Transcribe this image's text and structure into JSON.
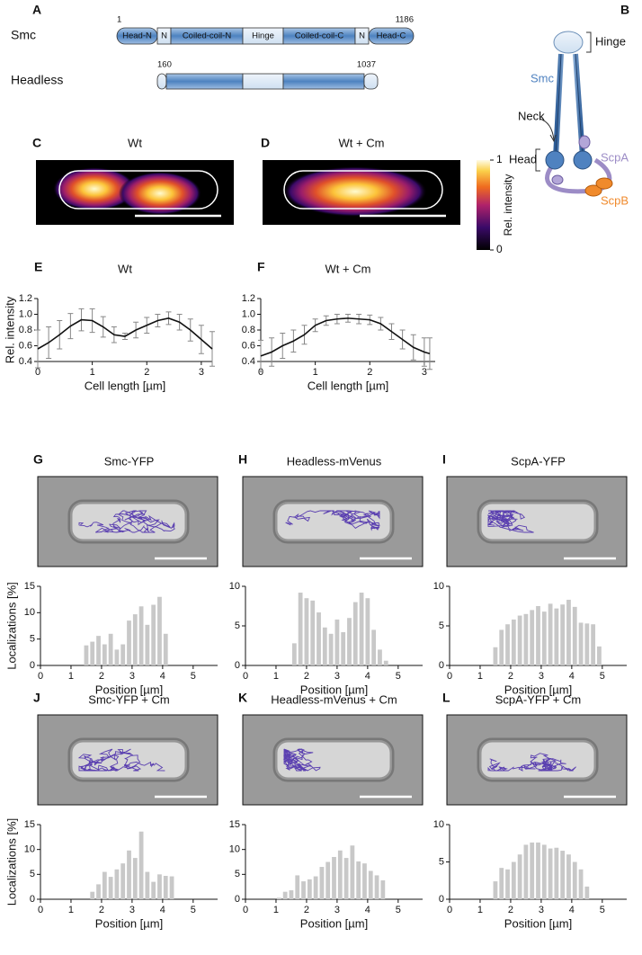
{
  "panel_a": {
    "panel": "A",
    "smc": {
      "name": "Smc",
      "start": "1",
      "end": "1186",
      "domains": [
        "Head-N",
        "N",
        "Coiled-coil-N",
        "Hinge",
        "Coiled-coil-C",
        "N",
        "Head-C"
      ]
    },
    "headless": {
      "name": "Headless",
      "start": "160",
      "end": "1037"
    }
  },
  "panel_b": {
    "panel": "B",
    "hinge": "Hinge",
    "smc": "Smc",
    "neck": "Neck",
    "head": "Head",
    "scpa": "ScpA",
    "scpb": "ScpB"
  },
  "panel_c": {
    "panel": "C",
    "title": "Wt"
  },
  "panel_d": {
    "panel": "D",
    "title": "Wt + Cm"
  },
  "colorbar": {
    "label": "Rel. intensity",
    "ticks": [
      0,
      1
    ]
  },
  "chart_data": [
    {
      "type": "errorline",
      "panel": "E",
      "title": "Wt",
      "x_label": "Cell length [µm]",
      "y_label": "Rel. intensity",
      "color": "#111111",
      "x": [
        0,
        0.2,
        0.4,
        0.6,
        0.8,
        1,
        1.2,
        1.4,
        1.6,
        1.8,
        2,
        2.2,
        2.4,
        2.6,
        2.8,
        3,
        3.2
      ],
      "values": [
        0.56,
        0.64,
        0.74,
        0.85,
        0.93,
        0.92,
        0.84,
        0.74,
        0.72,
        0.8,
        0.86,
        0.92,
        0.95,
        0.9,
        0.8,
        0.68,
        0.56
      ],
      "errors": [
        0.24,
        0.2,
        0.18,
        0.16,
        0.14,
        0.15,
        0.13,
        0.1,
        0.04,
        0.1,
        0.1,
        0.08,
        0.08,
        0.1,
        0.14,
        0.18,
        0.22
      ],
      "xlim": [
        0,
        3.2
      ],
      "ylim": [
        0.4,
        1.2
      ],
      "xticks": [
        0,
        1,
        2,
        3
      ],
      "yticks": [
        0.4,
        0.6,
        0.8,
        {
          "value": 1,
          "label": "1.0"
        },
        1.2
      ]
    },
    {
      "type": "errorline",
      "panel": "F",
      "title": "Wt + Cm",
      "x_label": "Cell length [µm]",
      "color": "#111111",
      "x": [
        0,
        0.2,
        0.4,
        0.6,
        0.8,
        1,
        1.2,
        1.4,
        1.6,
        1.8,
        2,
        2.2,
        2.4,
        2.6,
        2.8,
        3,
        3.1
      ],
      "values": [
        0.47,
        0.52,
        0.6,
        0.66,
        0.74,
        0.86,
        0.92,
        0.94,
        0.95,
        0.94,
        0.93,
        0.88,
        0.78,
        0.68,
        0.58,
        0.52,
        0.5
      ],
      "errors": [
        0.2,
        0.18,
        0.16,
        0.14,
        0.12,
        0.08,
        0.06,
        0.06,
        0.05,
        0.06,
        0.06,
        0.08,
        0.1,
        0.12,
        0.16,
        0.18,
        0.2
      ],
      "xlim": [
        0,
        3.2
      ],
      "ylim": [
        0.4,
        1.2
      ],
      "xticks": [
        0,
        1,
        2,
        3
      ],
      "yticks": [
        0.4,
        0.6,
        0.8,
        {
          "value": 1,
          "label": "1.0"
        },
        1.2
      ]
    },
    {
      "type": "histogram",
      "panel": "G",
      "title": "Smc-YFP",
      "x_label": "Position [µm]",
      "y_label": "Localizations [%]",
      "color": "#c8c8c8",
      "bins": [
        1.4,
        1.6,
        1.8,
        2,
        2.2,
        2.4,
        2.6,
        2.8,
        3,
        3.2,
        3.4,
        3.6,
        3.8,
        4,
        4.2
      ],
      "values": [
        3.8,
        4.5,
        5.6,
        4,
        6,
        3,
        4,
        8.5,
        9.7,
        11.2,
        7.7,
        11.5,
        13,
        6
      ],
      "xlim": [
        0,
        5.8
      ],
      "ylim": [
        0,
        15
      ],
      "xticks": [
        0,
        1,
        2,
        3,
        4,
        5
      ],
      "yticks": [
        0,
        5,
        10,
        15
      ]
    },
    {
      "type": "histogram",
      "panel": "H",
      "title": "Headless-mVenus",
      "x_label": "Position [µm]",
      "color": "#c8c8c8",
      "bins": [
        1.5,
        1.7,
        1.9,
        2.1,
        2.3,
        2.5,
        2.7,
        2.9,
        3.1,
        3.3,
        3.5,
        3.7,
        3.9,
        4.1,
        4.3,
        4.5,
        4.7
      ],
      "values": [
        2.8,
        9.2,
        8.5,
        8.2,
        6.7,
        4.8,
        4,
        5.8,
        4.2,
        6,
        8,
        9.2,
        8.5,
        4.5,
        2,
        0.6
      ],
      "xlim": [
        0,
        5.8
      ],
      "ylim": [
        0,
        10
      ],
      "xticks": [
        0,
        1,
        2,
        3,
        4,
        5
      ],
      "yticks": [
        0,
        5,
        10
      ]
    },
    {
      "type": "histogram",
      "panel": "I",
      "title": "ScpA-YFP",
      "x_label": "Position [µm]",
      "color": "#c8c8c8",
      "bins": [
        1.4,
        1.6,
        1.8,
        2,
        2.2,
        2.4,
        2.6,
        2.8,
        3,
        3.2,
        3.4,
        3.6,
        3.8,
        4,
        4.2,
        4.4,
        4.6,
        4.8,
        5
      ],
      "values": [
        2.3,
        4.5,
        5.2,
        5.8,
        6.3,
        6.5,
        7,
        7.5,
        6.8,
        7.8,
        7.2,
        7.7,
        8.3,
        7.4,
        5.4,
        5.3,
        5.2,
        2.4
      ],
      "xlim": [
        0,
        5.8
      ],
      "ylim": [
        0,
        10
      ],
      "xticks": [
        0,
        1,
        2,
        3,
        4,
        5
      ],
      "yticks": [
        0,
        5,
        10
      ]
    },
    {
      "type": "histogram",
      "panel": "J",
      "title": "Smc-YFP + Cm",
      "x_label": "Position [µm]",
      "y_label": "Localizations [%]",
      "color": "#c8c8c8",
      "bins": [
        1.6,
        1.8,
        2,
        2.2,
        2.4,
        2.6,
        2.8,
        3,
        3.2,
        3.4,
        3.6,
        3.8,
        4,
        4.2,
        4.4
      ],
      "values": [
        1.5,
        3,
        5.5,
        4.5,
        6,
        7.2,
        9.8,
        8.3,
        13.6,
        5.5,
        3.5,
        5,
        4.7,
        4.6
      ],
      "xlim": [
        0,
        5.8
      ],
      "ylim": [
        0,
        15
      ],
      "xticks": [
        0,
        1,
        2,
        3,
        4,
        5
      ],
      "yticks": [
        0,
        5,
        10,
        15
      ]
    },
    {
      "type": "histogram",
      "panel": "K",
      "title": "Headless-mVenus + Cm",
      "x_label": "Position [µm]",
      "color": "#c8c8c8",
      "bins": [
        1,
        1.2,
        1.4,
        1.6,
        1.8,
        2,
        2.2,
        2.4,
        2.6,
        2.8,
        3,
        3.2,
        3.4,
        3.6,
        3.8,
        4,
        4.2,
        4.4,
        4.6
      ],
      "values": [
        0.3,
        1.5,
        1.8,
        4.8,
        3.6,
        4,
        4.6,
        6.5,
        7.5,
        8.5,
        9.8,
        8.3,
        10.8,
        7.6,
        7.2,
        5.7,
        4.8,
        3.8
      ],
      "xlim": [
        0,
        5.8
      ],
      "ylim": [
        0,
        15
      ],
      "xticks": [
        0,
        1,
        2,
        3,
        4,
        5
      ],
      "yticks": [
        0,
        5,
        10,
        15
      ]
    },
    {
      "type": "histogram",
      "panel": "L",
      "title": "ScpA-YFP + Cm",
      "x_label": "Position [µm]",
      "color": "#c8c8c8",
      "bins": [
        1.4,
        1.6,
        1.8,
        2,
        2.2,
        2.4,
        2.6,
        2.8,
        3,
        3.2,
        3.4,
        3.6,
        3.8,
        4,
        4.2,
        4.4,
        4.6
      ],
      "values": [
        2.4,
        4.2,
        4,
        5,
        6,
        7.3,
        7.6,
        7.6,
        7.3,
        6.8,
        6.9,
        6.5,
        6,
        5,
        4,
        1.7
      ],
      "xlim": [
        0,
        5.8
      ],
      "ylim": [
        0,
        10
      ],
      "xticks": [
        0,
        1,
        2,
        3,
        4,
        5
      ],
      "yticks": [
        0,
        5,
        10
      ]
    }
  ]
}
